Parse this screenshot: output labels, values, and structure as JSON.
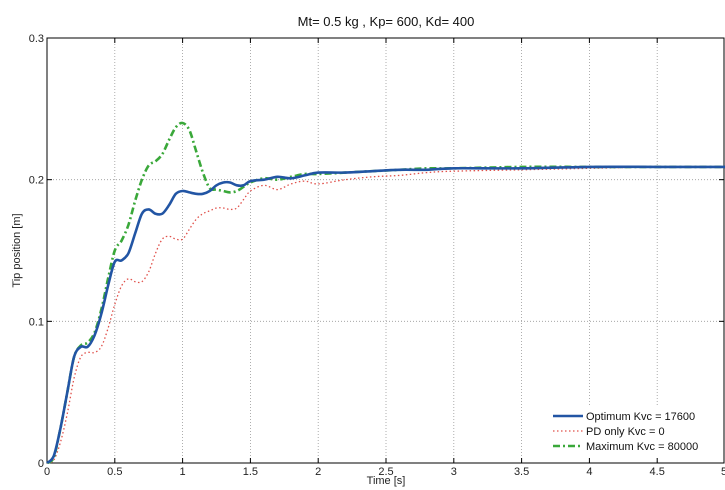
{
  "chart_data": {
    "type": "line",
    "title": "Mt= 0.5 kg , Kp= 600, Kd= 400",
    "xlabel": "Time [s]",
    "ylabel": "Tip position [m]",
    "xlim": [
      0,
      5
    ],
    "ylim": [
      0,
      0.3
    ],
    "xticks": [
      "0",
      "0.5",
      "1",
      "1.5",
      "2",
      "2.5",
      "3",
      "3.5",
      "4",
      "4.5",
      "5"
    ],
    "yticks": [
      "0",
      "0.1",
      "0.2",
      "0.3"
    ],
    "grid": true,
    "legend_position": "bottom-right",
    "series": [
      {
        "name": "Optimum Kvc = 17600",
        "color": "#2255a4",
        "style": "solid",
        "x": [
          0,
          0.05,
          0.1,
          0.15,
          0.2,
          0.25,
          0.3,
          0.35,
          0.4,
          0.45,
          0.5,
          0.55,
          0.6,
          0.65,
          0.7,
          0.75,
          0.8,
          0.85,
          0.9,
          0.95,
          1.0,
          1.05,
          1.1,
          1.15,
          1.2,
          1.25,
          1.3,
          1.35,
          1.4,
          1.45,
          1.5,
          1.6,
          1.7,
          1.8,
          1.9,
          2.0,
          2.2,
          2.4,
          2.6,
          2.8,
          3.0,
          3.5,
          4.0,
          4.5,
          5.0
        ],
        "y": [
          0,
          0.005,
          0.025,
          0.05,
          0.075,
          0.082,
          0.082,
          0.09,
          0.105,
          0.125,
          0.142,
          0.143,
          0.148,
          0.162,
          0.176,
          0.179,
          0.176,
          0.176,
          0.182,
          0.19,
          0.192,
          0.191,
          0.19,
          0.19,
          0.192,
          0.196,
          0.198,
          0.198,
          0.196,
          0.196,
          0.199,
          0.2,
          0.202,
          0.201,
          0.203,
          0.205,
          0.205,
          0.206,
          0.207,
          0.207,
          0.208,
          0.208,
          0.209,
          0.209,
          0.209
        ]
      },
      {
        "name": "PD only Kvc = 0",
        "color": "#e0504a",
        "style": "dotted",
        "x": [
          0,
          0.05,
          0.1,
          0.15,
          0.2,
          0.25,
          0.3,
          0.35,
          0.4,
          0.45,
          0.5,
          0.55,
          0.6,
          0.65,
          0.7,
          0.75,
          0.8,
          0.85,
          0.9,
          0.95,
          1.0,
          1.05,
          1.1,
          1.15,
          1.2,
          1.25,
          1.3,
          1.35,
          1.4,
          1.45,
          1.5,
          1.6,
          1.7,
          1.8,
          1.9,
          2.0,
          2.2,
          2.4,
          2.6,
          2.8,
          3.0,
          3.5,
          4.0,
          4.5,
          5.0
        ],
        "y": [
          0,
          0.002,
          0.015,
          0.035,
          0.06,
          0.075,
          0.078,
          0.078,
          0.082,
          0.095,
          0.112,
          0.125,
          0.13,
          0.128,
          0.128,
          0.135,
          0.148,
          0.158,
          0.16,
          0.158,
          0.158,
          0.165,
          0.172,
          0.176,
          0.178,
          0.18,
          0.18,
          0.179,
          0.18,
          0.186,
          0.192,
          0.196,
          0.193,
          0.197,
          0.199,
          0.197,
          0.2,
          0.202,
          0.203,
          0.205,
          0.206,
          0.207,
          0.208,
          0.209,
          0.209
        ]
      },
      {
        "name": "Maximum Kvc = 80000",
        "color": "#3aa83a",
        "style": "dashdot",
        "x": [
          0,
          0.05,
          0.1,
          0.15,
          0.2,
          0.25,
          0.3,
          0.35,
          0.4,
          0.45,
          0.5,
          0.55,
          0.6,
          0.65,
          0.7,
          0.75,
          0.8,
          0.85,
          0.9,
          0.95,
          1.0,
          1.05,
          1.1,
          1.15,
          1.2,
          1.25,
          1.3,
          1.35,
          1.4,
          1.45,
          1.5,
          1.6,
          1.7,
          1.8,
          1.9,
          2.0,
          2.2,
          2.4,
          2.6,
          2.8,
          3.0,
          3.5,
          4.0,
          4.5,
          5.0
        ],
        "y": [
          0,
          0.004,
          0.025,
          0.05,
          0.075,
          0.083,
          0.085,
          0.092,
          0.108,
          0.13,
          0.15,
          0.157,
          0.168,
          0.185,
          0.2,
          0.21,
          0.213,
          0.218,
          0.228,
          0.237,
          0.24,
          0.235,
          0.22,
          0.205,
          0.194,
          0.193,
          0.192,
          0.191,
          0.192,
          0.195,
          0.198,
          0.201,
          0.2,
          0.202,
          0.204,
          0.204,
          0.205,
          0.206,
          0.207,
          0.208,
          0.208,
          0.209,
          0.209,
          0.209,
          0.209
        ]
      }
    ]
  }
}
